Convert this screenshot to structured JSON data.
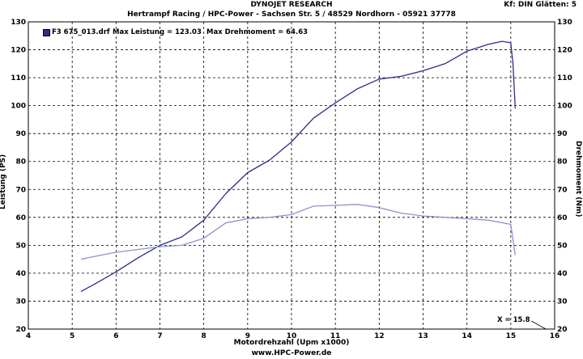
{
  "header": {
    "line1": "DYNOJET RESEARCH",
    "line2": "Hertrampf Racing / HPC-Power - Sachsen Str. 5 / 48529 Nordhorn - 05921 37778",
    "settings": "Kf: DIN  Glätten: 5",
    "footer": "www.HPC-Power.de"
  },
  "legend": {
    "run": "F3 675_013.drf",
    "max_power": "Max Leistung = 123.03",
    "max_torque": "Max Drehmoment = 64.63"
  },
  "cursor": {
    "label": "X = 15.8",
    "x": 15.8
  },
  "colors": {
    "power": "#2b2f8a",
    "torque": "#8d92cc",
    "grid": "#000000"
  },
  "chart_data": {
    "type": "line",
    "xlabel": "Motordrehzahl (Upm x1000)",
    "ylabel": "Leistung (PS)",
    "y2label": "Drehmoment (Nm)",
    "xlim": [
      4,
      16
    ],
    "ylim": [
      20,
      130
    ],
    "y2lim": [
      20,
      130
    ],
    "x_ticks": [
      4,
      5,
      6,
      7,
      8,
      9,
      10,
      11,
      12,
      13,
      14,
      15,
      16
    ],
    "y_ticks": [
      20,
      30,
      40,
      50,
      60,
      70,
      80,
      90,
      100,
      110,
      120,
      130
    ],
    "grid": true,
    "series": [
      {
        "name": "Leistung",
        "axis": "left",
        "x": [
          5.2,
          5.5,
          6.0,
          6.5,
          7.0,
          7.5,
          8.0,
          8.5,
          9.0,
          9.5,
          10.0,
          10.5,
          11.0,
          11.5,
          12.0,
          12.5,
          13.0,
          13.5,
          14.0,
          14.5,
          14.8,
          15.0,
          15.05,
          15.1
        ],
        "y": [
          33.5,
          36,
          40.5,
          45.5,
          50,
          53,
          59,
          68.5,
          76,
          80.5,
          87,
          95.5,
          101,
          106,
          109.5,
          110.5,
          112.5,
          115,
          119.5,
          122,
          123.03,
          122.5,
          115,
          99
        ]
      },
      {
        "name": "Drehmoment",
        "axis": "right",
        "x": [
          5.2,
          5.5,
          6.0,
          6.5,
          7.0,
          7.5,
          8.0,
          8.5,
          9.0,
          9.5,
          10.0,
          10.5,
          11.0,
          11.5,
          12.0,
          12.5,
          13.0,
          13.5,
          14.0,
          14.5,
          15.0,
          15.05,
          15.1
        ],
        "y": [
          45,
          46,
          47.5,
          48.5,
          49.5,
          50,
          52.5,
          58,
          59.5,
          60,
          61,
          64,
          64.3,
          64.63,
          63.5,
          61.5,
          60.5,
          60,
          59.5,
          59,
          57.5,
          52,
          46.5
        ]
      }
    ]
  }
}
